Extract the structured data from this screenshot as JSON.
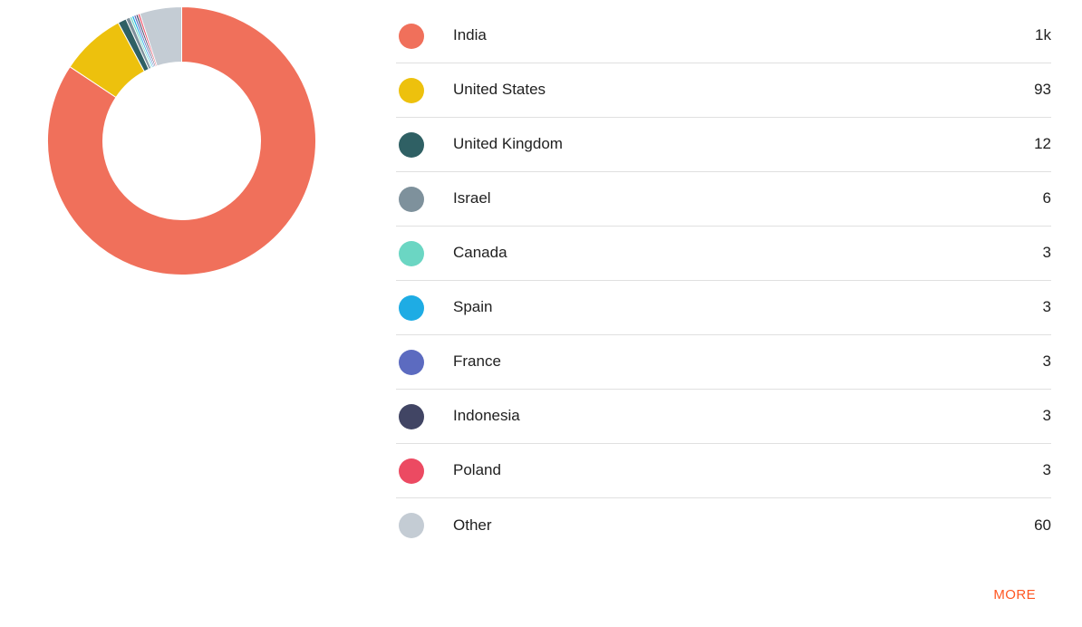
{
  "colors": {
    "accent": "#FF5722",
    "text": "#212121",
    "divider": "#E0E0E0",
    "background": "#FFFFFF"
  },
  "more_label": "MORE",
  "chart_data": {
    "type": "pie",
    "subtype": "donut",
    "legend_position": "right",
    "title": "",
    "categories": [
      "India",
      "United States",
      "United Kingdom",
      "Israel",
      "Canada",
      "Spain",
      "France",
      "Indonesia",
      "Poland",
      "Other"
    ],
    "values": [
      1000,
      93,
      12,
      6,
      3,
      3,
      3,
      3,
      3,
      60
    ],
    "display_values": [
      "1k",
      "93",
      "12",
      "6",
      "3",
      "3",
      "3",
      "3",
      "3",
      "60"
    ],
    "colors": [
      "#F0705B",
      "#EDC10D",
      "#2F6064",
      "#7E919C",
      "#6BD6C3",
      "#1EACE4",
      "#5C6BC0",
      "#414564",
      "#EC4A62",
      "#C4CCD4"
    ],
    "slice_separator_color": "#FFFFFF"
  }
}
